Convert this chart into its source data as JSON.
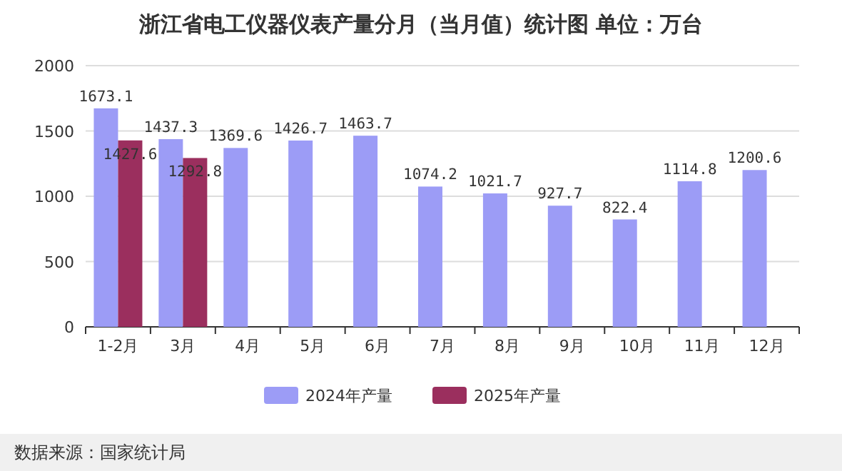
{
  "chart_data": {
    "type": "bar",
    "title": "浙江省电工仪器仪表产量分月（当月值）统计图  单位：万台",
    "categories": [
      "1-2月",
      "3月",
      "4月",
      "5月",
      "6月",
      "7月",
      "8月",
      "9月",
      "10月",
      "11月",
      "12月"
    ],
    "series": [
      {
        "name": "2024年产量",
        "color": "#9c9cf6",
        "values": [
          1673.1,
          1437.3,
          1369.6,
          1426.7,
          1463.7,
          1074.2,
          1021.7,
          927.7,
          822.4,
          1114.8,
          1200.6
        ]
      },
      {
        "name": "2025年产量",
        "color": "#9b2f5e",
        "values": [
          1427.6,
          1292.8,
          null,
          null,
          null,
          null,
          null,
          null,
          null,
          null,
          null
        ]
      }
    ],
    "ylim": [
      0,
      2000
    ],
    "yticks": [
      0,
      500,
      1000,
      1500,
      2000
    ],
    "grid": "y",
    "legend": "bottom",
    "data_labels": true,
    "annotations": [
      "数据来源：国家统计局"
    ]
  }
}
